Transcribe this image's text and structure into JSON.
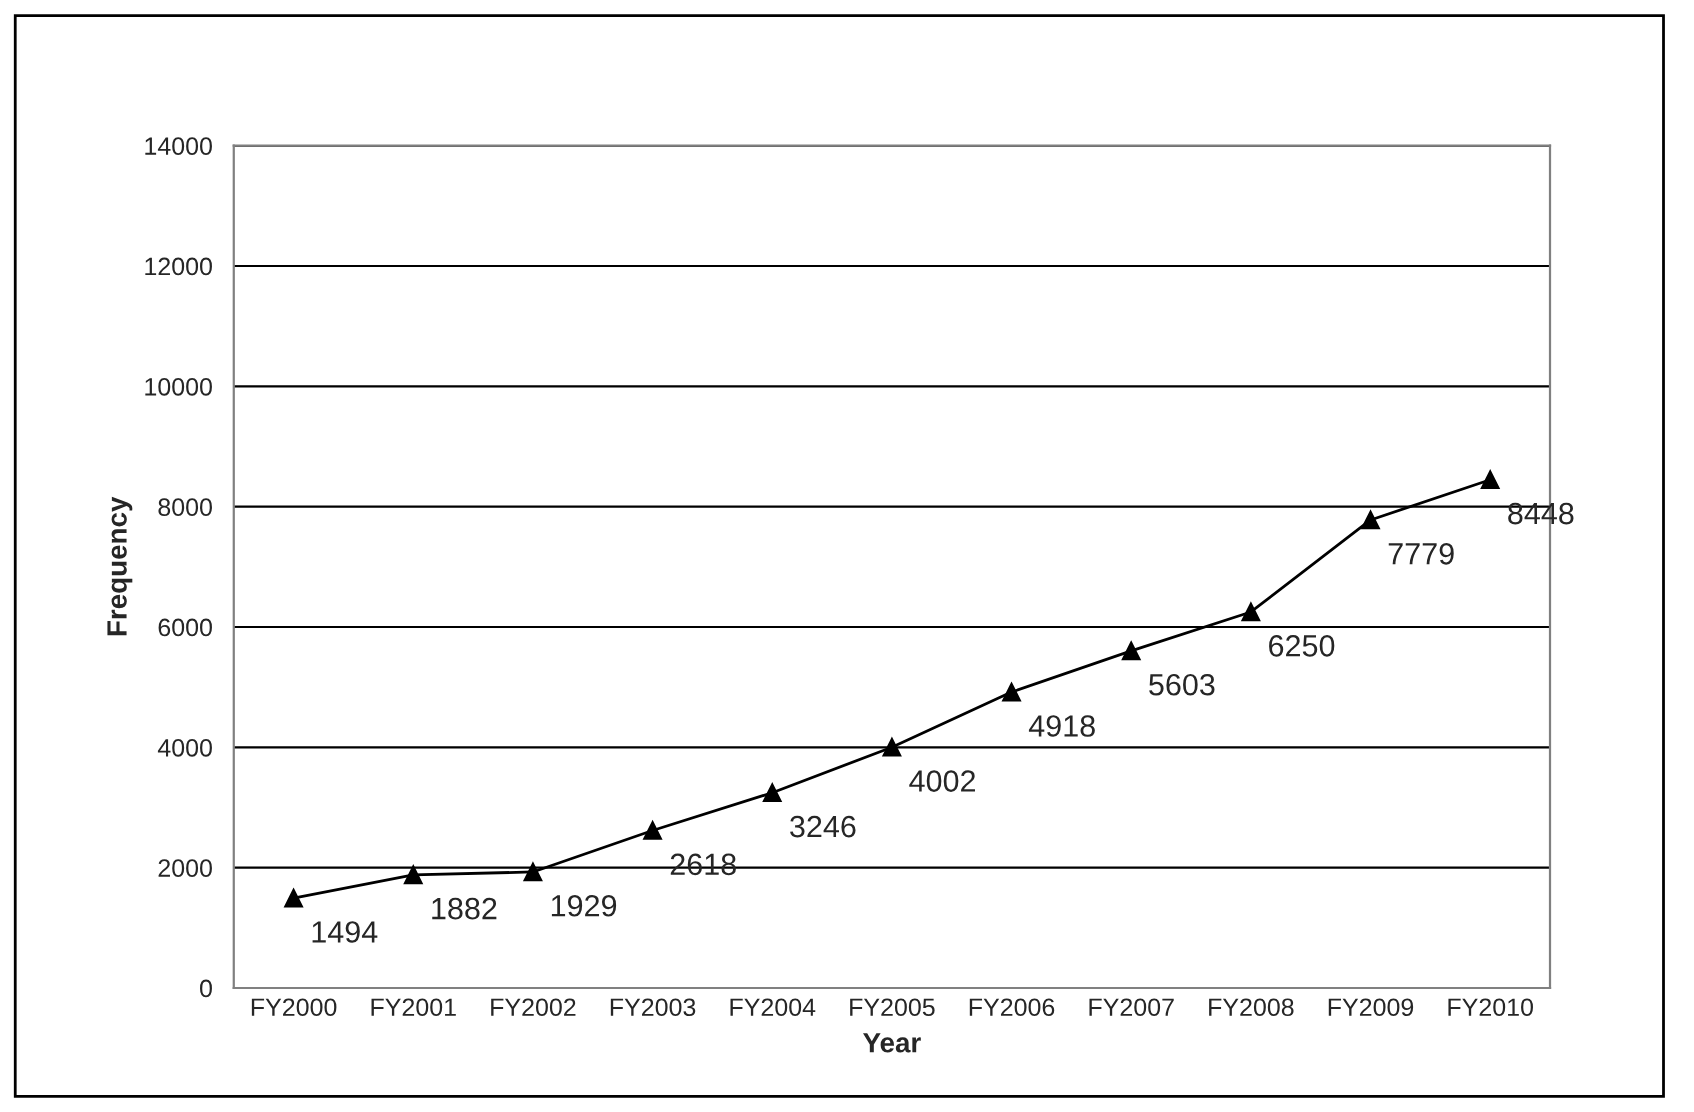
{
  "chart_data": {
    "type": "line",
    "xlabel": "Year",
    "ylabel": "Frequency",
    "categories": [
      "FY2000",
      "FY2001",
      "FY2002",
      "FY2003",
      "FY2004",
      "FY2005",
      "FY2006",
      "FY2007",
      "FY2008",
      "FY2009",
      "FY2010"
    ],
    "series": [
      {
        "color": "#000000",
        "values": [
          1494,
          1882,
          1929,
          2618,
          3246,
          4002,
          4918,
          5603,
          6250,
          7779,
          8448
        ]
      }
    ],
    "ylim": [
      0,
      14000
    ],
    "yticks": [
      0,
      2000,
      4000,
      6000,
      8000,
      10000,
      12000,
      14000
    ],
    "grid": "y",
    "marker": "triangle",
    "line_style": "solid",
    "data_labels": true
  }
}
